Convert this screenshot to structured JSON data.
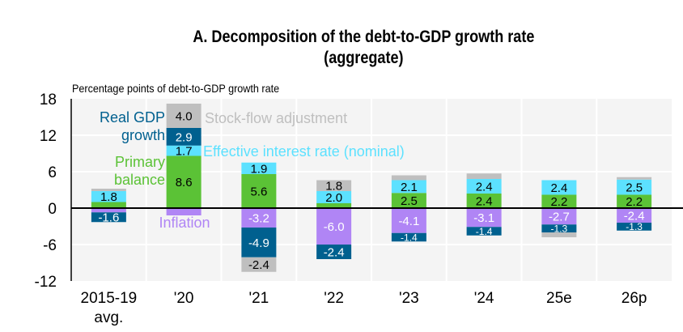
{
  "title_line1": "A. Decomposition of the debt-to-GDP growth rate",
  "title_line2": "(aggregate)",
  "unit_label": "Percentage points of debt-to-GDP growth rate",
  "colors": {
    "primary_balance": "#5BC236",
    "effective_interest_rate": "#5CE1FF",
    "real_gdp_growth": "#00608F",
    "stock_flow_adjustment": "#BFBFBF",
    "inflation": "#B085F5",
    "plot_background": "#F4F4F4"
  },
  "chart_data": {
    "type": "bar",
    "stacked": true,
    "title": "A. Decomposition of the debt-to-GDP growth rate (aggregate)",
    "xlabel": "",
    "ylabel": "Percentage points of debt-to-GDP growth rate",
    "ylim": [
      -12,
      18
    ],
    "yticks": [
      -12,
      -6,
      0,
      6,
      12,
      18
    ],
    "grid": true,
    "categories": [
      "2015-19 avg.",
      "'20",
      "'21",
      "'22",
      "'23",
      "'24",
      "25e",
      "26p"
    ],
    "series": [
      {
        "name": "Primary balance",
        "key": "primary_balance",
        "values": [
          1.0,
          8.6,
          5.6,
          0.8,
          2.5,
          2.4,
          2.2,
          2.2
        ],
        "labels": [
          null,
          "8.6",
          "5.6",
          null,
          "2.5",
          "2.4",
          "2.2",
          "2.2"
        ]
      },
      {
        "name": "Effective interest rate (nominal)",
        "key": "effective_interest_rate",
        "values": [
          1.8,
          1.7,
          1.9,
          2.0,
          2.1,
          2.4,
          2.4,
          2.5
        ],
        "labels": [
          "1.8",
          "1.7",
          "1.9",
          "2.0",
          "2.1",
          "2.4",
          "2.4",
          "2.5"
        ]
      },
      {
        "name": "Inflation",
        "key": "inflation",
        "values": [
          -0.7,
          -1.2,
          -3.2,
          -6.0,
          -4.1,
          -3.1,
          -2.7,
          -2.4
        ],
        "labels": [
          null,
          null,
          "-3.2",
          "-6.0",
          "-4.1",
          "-3.1",
          "-2.7",
          "-2.4"
        ]
      },
      {
        "name": "Real GDP growth",
        "key": "real_gdp_growth",
        "values": [
          -1.6,
          2.9,
          -4.9,
          -2.4,
          -1.4,
          -1.4,
          -1.3,
          -1.3
        ],
        "labels": [
          "-1.6",
          "2.9",
          "-4.9",
          "-2.4",
          "-1.4",
          "-1.4",
          "-1.3",
          "-1.3"
        ]
      },
      {
        "name": "Stock-flow adjustment",
        "key": "stock_flow_adjustment",
        "values": [
          0.4,
          4.0,
          -2.4,
          1.8,
          0.8,
          0.9,
          -0.8,
          0.4
        ],
        "labels": [
          null,
          "4.0",
          "-2.4",
          "1.8",
          null,
          null,
          null,
          null
        ]
      }
    ],
    "legend": {
      "placement": "inline-annotations",
      "entries": [
        {
          "text_lines": [
            "Real GDP",
            "growth"
          ],
          "series": "real_gdp_growth"
        },
        {
          "text_lines": [
            "Primary",
            "balance"
          ],
          "series": "primary_balance"
        },
        {
          "text_lines": [
            "Stock-flow adjustment"
          ],
          "series": "stock_flow_adjustment"
        },
        {
          "text_lines": [
            "Effective interest rate (nominal)"
          ],
          "series": "effective_interest_rate"
        },
        {
          "text_lines": [
            "Inflation"
          ],
          "series": "inflation"
        }
      ]
    }
  }
}
